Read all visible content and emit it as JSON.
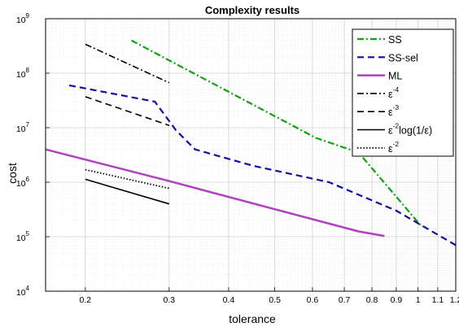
{
  "chart_data": {
    "type": "line",
    "title": "Complexity results",
    "xlabel": "tolerance",
    "ylabel": "cost",
    "x_scale": "log",
    "y_scale": "log",
    "xlim": [
      0.165,
      1.2
    ],
    "ylim": [
      10000,
      1000000000
    ],
    "grid": true,
    "minor_grid": true,
    "legend_position": "top-right",
    "x_ticks": [
      "0.2",
      "0.3",
      "0.4",
      "0.5",
      "0.6",
      "0.7",
      "0.8",
      "0.9",
      "1",
      "1.1",
      "1.2"
    ],
    "y_ticks": [
      {
        "base": "10",
        "exp": "4"
      },
      {
        "base": "10",
        "exp": "5"
      },
      {
        "base": "10",
        "exp": "6"
      },
      {
        "base": "10",
        "exp": "7"
      },
      {
        "base": "10",
        "exp": "8"
      },
      {
        "base": "10",
        "exp": "9"
      }
    ],
    "series": [
      {
        "name": "SS",
        "color": "#10a010",
        "dash": "dashdot",
        "width": 2.2,
        "x": [
          0.25,
          0.61,
          0.75,
          1.02
        ],
        "y": [
          400000000,
          6500000,
          3500000,
          150000
        ]
      },
      {
        "name": "SS-sel",
        "color": "#1010a0",
        "dash": "dashed",
        "width": 2.2,
        "x": [
          0.185,
          0.28,
          0.31,
          0.34,
          0.45,
          0.65,
          0.9,
          1.2
        ],
        "y": [
          60000000,
          30000000,
          9000000,
          4000000,
          2000000,
          1000000,
          300000,
          70000
        ]
      },
      {
        "name": "ML",
        "color": "#b040c0",
        "dash": "solid",
        "width": 2.5,
        "x": [
          0.165,
          0.3,
          0.5,
          0.75,
          0.85
        ],
        "y": [
          4000000,
          1050000,
          320000,
          125000,
          103000
        ]
      },
      {
        "name": "ε^-4",
        "label_prefix": "ε",
        "label_exp": "-4",
        "label_suffix": "",
        "color": "#000000",
        "dash": "dashdot",
        "width": 1.6,
        "x": [
          0.2,
          0.3
        ],
        "y": [
          340000000,
          67000000
        ]
      },
      {
        "name": "ε^-3",
        "label_prefix": "ε",
        "label_exp": "-3",
        "label_suffix": "",
        "color": "#000000",
        "dash": "dashed",
        "width": 1.6,
        "x": [
          0.2,
          0.3
        ],
        "y": [
          37000000,
          11000000
        ]
      },
      {
        "name": "ε^-2 log(1/ε)",
        "label_prefix": "ε",
        "label_exp": "-2",
        "label_suffix": "log(1/ε)",
        "color": "#000000",
        "dash": "solid",
        "width": 1.6,
        "x": [
          0.2,
          0.3
        ],
        "y": [
          1130000,
          400000
        ]
      },
      {
        "name": "ε^-2",
        "label_prefix": "ε",
        "label_exp": "-2",
        "label_suffix": "",
        "color": "#000000",
        "dash": "dotted",
        "width": 1.8,
        "x": [
          0.2,
          0.3
        ],
        "y": [
          1700000,
          770000
        ]
      }
    ]
  }
}
